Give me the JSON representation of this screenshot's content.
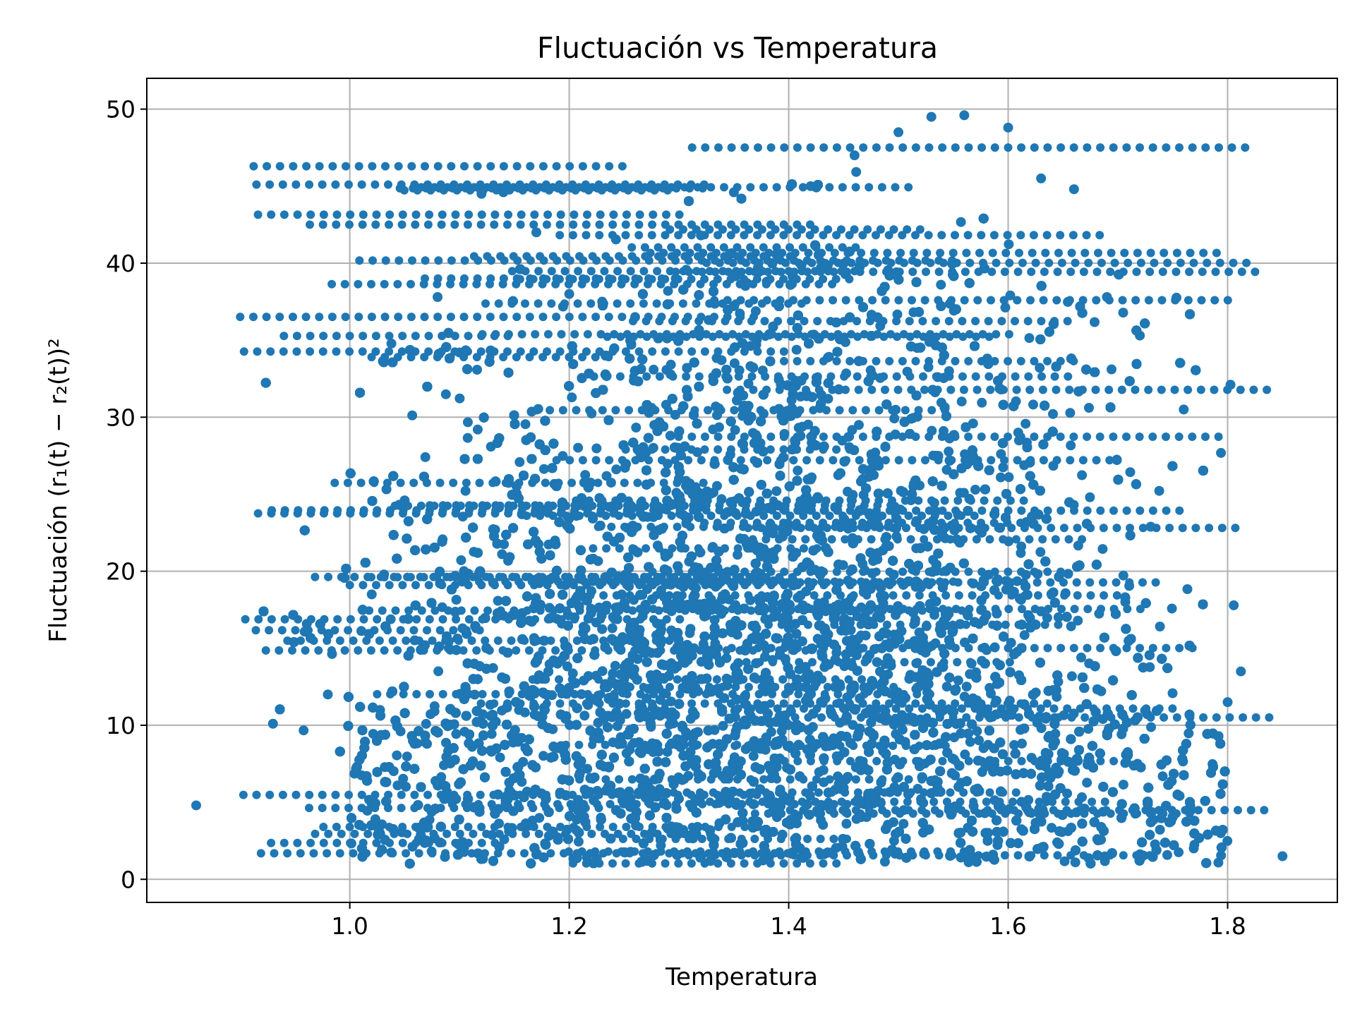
{
  "chart_data": {
    "type": "scatter",
    "title": "Fluctuación vs Temperatura",
    "xlabel": "Temperatura",
    "ylabel": "Fluctuación (r₁(t) − r₂(t))²",
    "xlim": [
      0.815,
      1.9
    ],
    "ylim": [
      -1.5,
      52
    ],
    "xticks": [
      "1.0",
      "1.2",
      "1.4",
      "1.6",
      "1.8"
    ],
    "xtick_values": [
      1.0,
      1.2,
      1.4,
      1.6,
      1.8
    ],
    "yticks": [
      "0",
      "10",
      "20",
      "30",
      "40",
      "50"
    ],
    "ytick_values": [
      0,
      10,
      20,
      30,
      40,
      50
    ],
    "grid": true,
    "color": "#1f77b4",
    "series": [
      {
        "x": [
          0.86,
          0.93,
          0.98,
          1.02,
          1.05,
          1.08,
          1.1,
          1.12,
          1.14,
          1.17,
          1.2,
          1.23,
          1.26,
          1.29,
          1.32,
          1.35,
          1.38,
          1.42,
          1.46,
          1.5,
          1.53,
          1.56,
          1.6,
          1.63,
          1.66,
          1.69,
          1.72,
          1.76,
          1.8,
          1.85
        ],
        "y": [
          4.8,
          10.1,
          12.0,
          18.5,
          24.6,
          37.8,
          34.2,
          44.5,
          44.6,
          42.0,
          38.0,
          37.5,
          36.5,
          38.2,
          41.8,
          44.6,
          38.8,
          45.0,
          47.0,
          48.5,
          49.5,
          49.6,
          48.8,
          45.5,
          44.8,
          37.8,
          35.3,
          30.5,
          11.5,
          1.5
        ]
      }
    ]
  }
}
